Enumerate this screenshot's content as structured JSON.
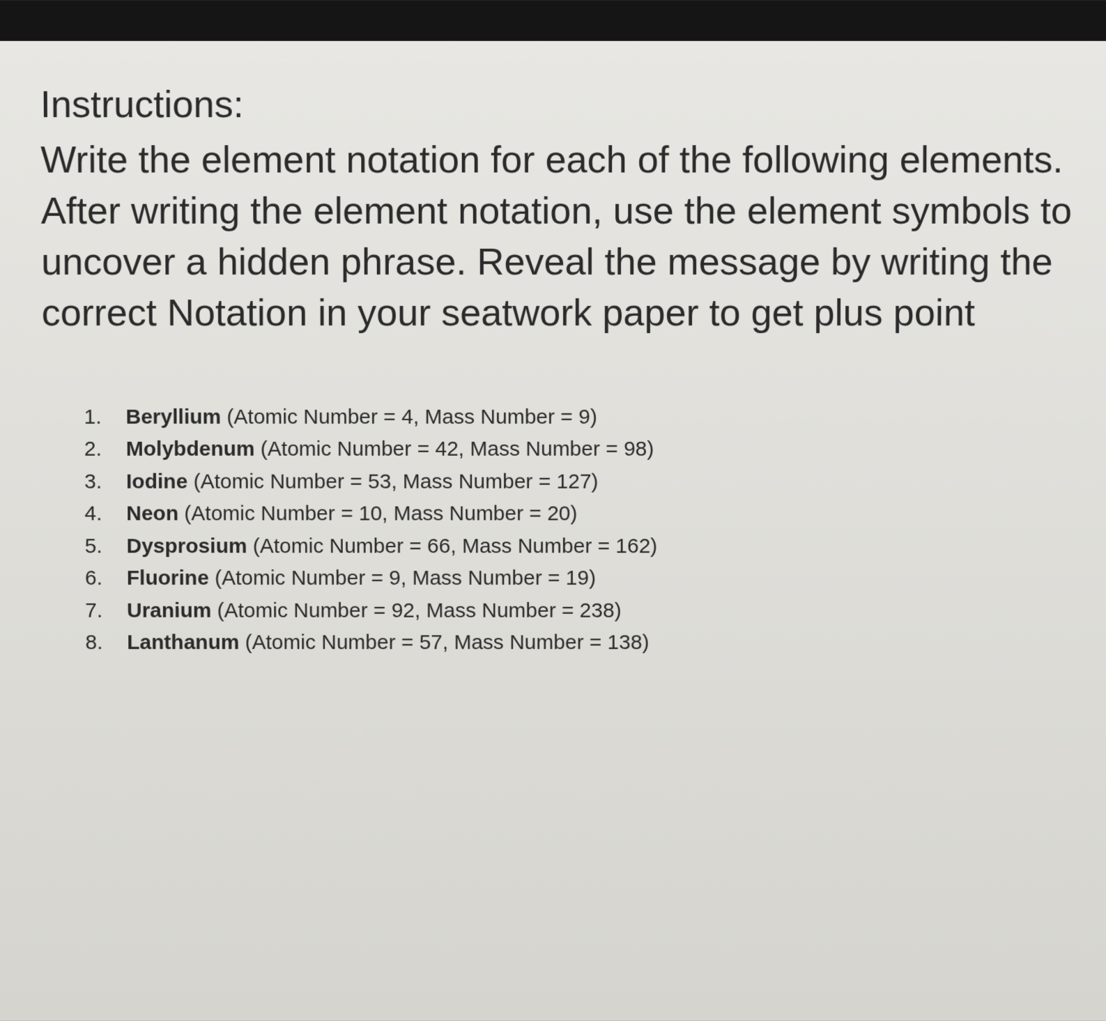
{
  "instructions": {
    "heading": "Instructions:",
    "para1": "Write the element notation for each of the following elements.",
    "para2": "After writing the element notation, use the element symbols to uncover a hidden phrase. Reveal the message by writing the correct Notation in your seatwork paper to get plus point"
  },
  "elements": [
    {
      "num": "1.",
      "name": "Beryllium",
      "detail": " (Atomic Number = 4, Mass Number = 9)"
    },
    {
      "num": "2.",
      "name": "Molybdenum",
      "detail": " (Atomic Number = 42, Mass Number = 98)"
    },
    {
      "num": "3.",
      "name": "Iodine",
      "detail": " (Atomic Number = 53, Mass Number = 127)"
    },
    {
      "num": "4.",
      "name": "Neon",
      "detail": " (Atomic Number = 10, Mass Number = 20)"
    },
    {
      "num": "5.",
      "name": "Dysprosium",
      "detail": " (Atomic Number = 66, Mass Number = 162)"
    },
    {
      "num": "6.",
      "name": "Fluorine",
      "detail": " (Atomic Number = 9, Mass Number = 19)"
    },
    {
      "num": "7.",
      "name": "Uranium",
      "detail": " (Atomic Number = 92, Mass Number = 238)"
    },
    {
      "num": "8.",
      "name": "Lanthanum",
      "detail": " (Atomic Number = 57, Mass Number = 138)"
    }
  ],
  "style": {
    "text_color": "#2a2a2a",
    "background_top": "#e8e7e3",
    "background_bottom": "#d5d4ce",
    "border_dark": "#151515",
    "heading_fontsize": 54,
    "body_fontsize": 54,
    "list_fontsize": 30,
    "font_family": "Arial"
  }
}
